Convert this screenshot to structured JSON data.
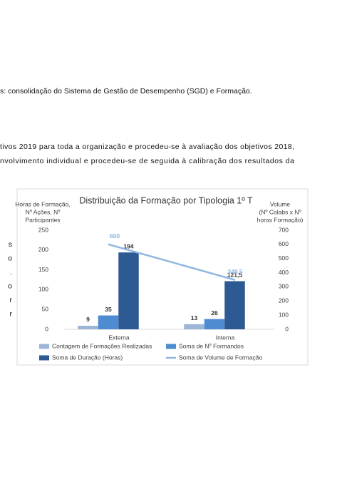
{
  "document": {
    "lines": [
      "s: consolidação do Sistema de Gestão de Desempenho (SGD) e Formação.",
      "tivos 2019 para toda a organização e procedeu-se à avaliação dos objetivos 2018,",
      "nvolvimento individual e procedeu-se de seguida à calibração dos resultados da"
    ],
    "side_fragments": [
      "s",
      "o",
      ".",
      "o",
      "r",
      "r"
    ]
  },
  "chart_data": {
    "type": "bar",
    "title": "Distribuição da Formação por Tipologia 1º T",
    "y_label": [
      "Horas de Formação,",
      "Nº Ações, Nº",
      "Participantes"
    ],
    "y2_label": [
      "Volume",
      "(Nº Colabs x Nº",
      "horas Formação)"
    ],
    "categories": [
      "Externa",
      "Interna"
    ],
    "series": [
      {
        "name": "Contagem de Formações Realizadas",
        "color": "#9db6d8",
        "values": [
          9,
          13
        ]
      },
      {
        "name": "Soma de Nº Formandos",
        "color": "#4e8bd0",
        "values": [
          35,
          26
        ]
      },
      {
        "name": "Soma de Duração (Horas)",
        "color": "#2e5a94",
        "values": [
          194,
          121.5
        ],
        "value_labels": [
          "194",
          "121,5"
        ]
      },
      {
        "name": "Soma de Volume de Formação",
        "color": "#8fb6e0",
        "type": "line",
        "axis": "y2",
        "values": [
          600,
          348.5
        ],
        "value_labels": [
          "600",
          "348,5"
        ]
      }
    ],
    "ylim": [
      0,
      250
    ],
    "yticks": [
      0,
      50,
      100,
      150,
      200,
      250
    ],
    "y2lim": [
      0,
      700
    ],
    "y2ticks": [
      0,
      100,
      200,
      300,
      400,
      500,
      600,
      700
    ]
  }
}
